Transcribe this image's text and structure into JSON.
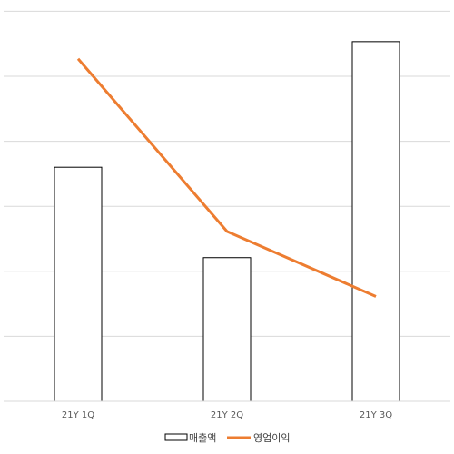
{
  "chart_data": {
    "type": "bar",
    "categories": [
      "21Y 1Q",
      "21Y 2Q",
      "21Y 3Q"
    ],
    "series": [
      {
        "name": "매출액",
        "kind": "bar",
        "values": [
          259,
          159,
          398
        ]
      },
      {
        "name": "영업이익",
        "kind": "line",
        "values": [
          379,
          188,
          116
        ]
      }
    ],
    "ylim": [
      0,
      430
    ],
    "grid": true,
    "legend": "bottom",
    "colors": {
      "bar_fill": "#ffffff",
      "bar_stroke": "#000000",
      "line": "#ed7d31",
      "grid": "#d9d9d9"
    }
  }
}
